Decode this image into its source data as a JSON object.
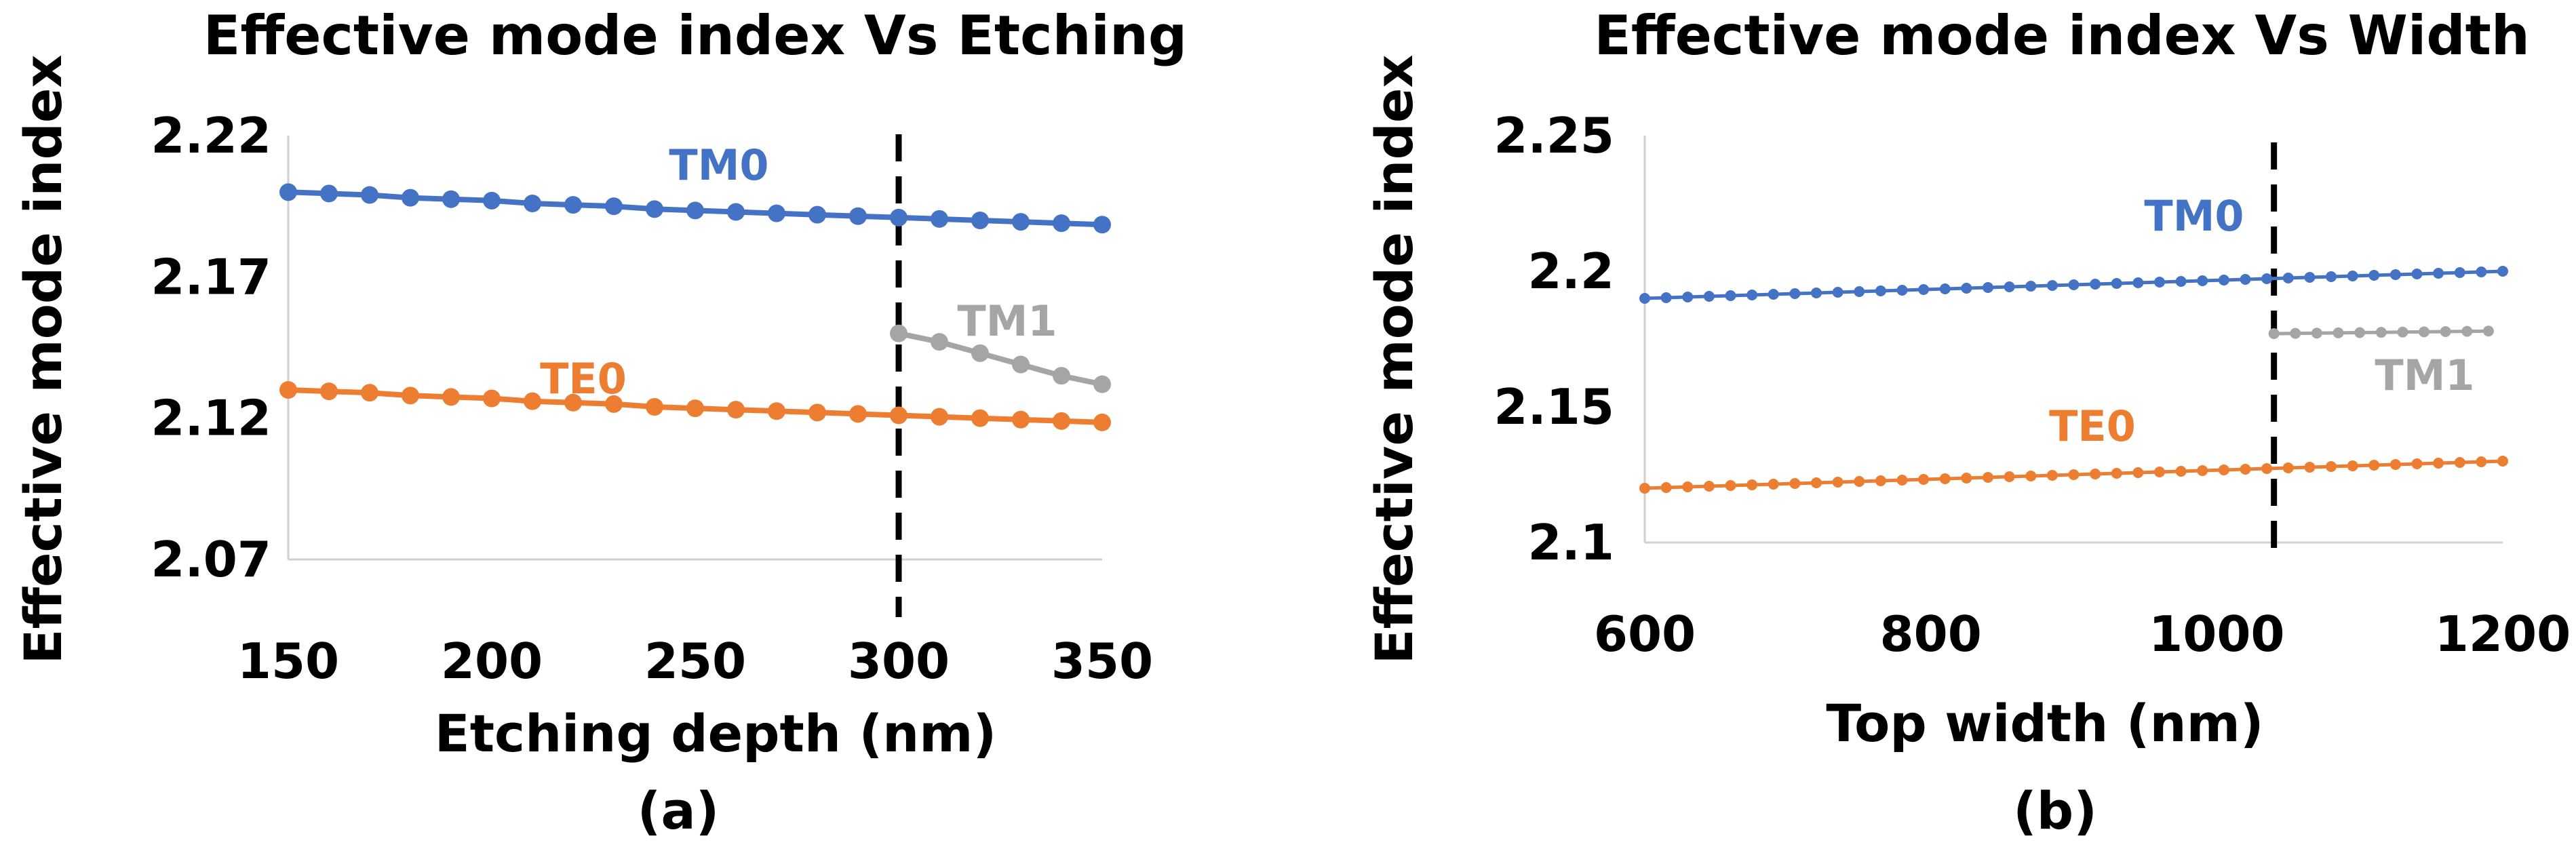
{
  "chart_data": [
    {
      "type": "line",
      "panel": "(a)",
      "title": "Effective mode index Vs Etching",
      "xlabel": "Etching depth (nm)",
      "ylabel": "Effective mode index",
      "xlim": [
        150,
        350
      ],
      "ylim": [
        2.07,
        2.22
      ],
      "xticks": [
        "150",
        "200",
        "250",
        "300",
        "350"
      ],
      "yticks": [
        "2.07",
        "2.12",
        "2.17",
        "2.22"
      ],
      "cutoff_x": 300,
      "series": [
        {
          "name": "TM0",
          "color": "#4472C4",
          "x": [
            150,
            160,
            170,
            180,
            190,
            200,
            210,
            220,
            230,
            240,
            250,
            260,
            270,
            280,
            290,
            300,
            310,
            320,
            330,
            340,
            350
          ],
          "y": [
            2.2,
            2.1995,
            2.199,
            2.198,
            2.1975,
            2.197,
            2.196,
            2.1955,
            2.195,
            2.194,
            2.1935,
            2.193,
            2.1925,
            2.192,
            2.1915,
            2.191,
            2.1905,
            2.19,
            2.1895,
            2.189,
            2.1885
          ]
        },
        {
          "name": "TE0",
          "color": "#ED7D31",
          "x": [
            150,
            160,
            170,
            180,
            190,
            200,
            210,
            220,
            230,
            240,
            250,
            260,
            270,
            280,
            290,
            300,
            310,
            320,
            330,
            340,
            350
          ],
          "y": [
            2.13,
            2.1295,
            2.129,
            2.128,
            2.1275,
            2.127,
            2.126,
            2.1255,
            2.125,
            2.124,
            2.1235,
            2.123,
            2.1225,
            2.122,
            2.1215,
            2.121,
            2.1205,
            2.12,
            2.1195,
            2.119,
            2.1185
          ]
        },
        {
          "name": "TM1",
          "color": "#A5A5A5",
          "x": [
            300,
            310,
            320,
            330,
            340,
            350
          ],
          "y": [
            2.15,
            2.147,
            2.143,
            2.139,
            2.135,
            2.132
          ]
        }
      ]
    },
    {
      "type": "line",
      "panel": "(b)",
      "title": "Effective mode index Vs Width",
      "xlabel": "Top width (nm)",
      "ylabel": "Effective mode index",
      "xlim": [
        600,
        1200
      ],
      "ylim": [
        2.1,
        2.25
      ],
      "xticks": [
        "600",
        "800",
        "1000",
        "1200"
      ],
      "yticks": [
        "2.1",
        "2.15",
        "2.2",
        "2.25"
      ],
      "cutoff_x": 1040,
      "series": [
        {
          "name": "TM0",
          "color": "#4472C4",
          "x_start": 600,
          "x_end": 1200,
          "x_step": 15,
          "y_start": 2.19,
          "y_end": 2.2
        },
        {
          "name": "TE0",
          "color": "#ED7D31",
          "x_start": 600,
          "x_end": 1200,
          "x_step": 15,
          "y_start": 2.12,
          "y_end": 2.13
        },
        {
          "name": "TM1",
          "color": "#A5A5A5",
          "x_start": 1040,
          "x_end": 1200,
          "x_step": 15,
          "y_start": 2.177,
          "y_end": 2.178
        }
      ]
    }
  ]
}
